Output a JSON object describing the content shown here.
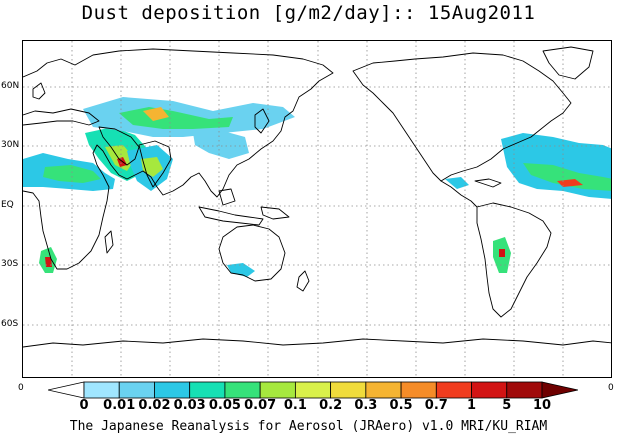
{
  "title": "Dust deposition [g/m2/day]:: 15Aug2011",
  "footer": "The Japanese Reanalysis for Aerosol (JRAero) v1.0 MRI/KU_RIAM",
  "lat_labels": [
    "60N",
    "30N",
    "EQ",
    "30S",
    "60S"
  ],
  "lon_labels": [
    "0",
    "0"
  ],
  "colorbar": {
    "labels": [
      "0",
      "0.01",
      "0.02",
      "0.03",
      "0.05",
      "0.07",
      "0.1",
      "0.2",
      "0.3",
      "0.5",
      "0.7",
      "1",
      "5",
      "10"
    ],
    "colors": [
      "#ffffff",
      "#a0e6ff",
      "#6ad2f0",
      "#2cc8e6",
      "#16e0b4",
      "#36e27a",
      "#a6e83e",
      "#d9f04a",
      "#f0dc3c",
      "#f5b432",
      "#f58c28",
      "#f03c1e",
      "#d21414",
      "#a00a0a",
      "#6e0000"
    ]
  },
  "colors": {
    "coast": "#000000",
    "grid": "#8c8c8c"
  }
}
